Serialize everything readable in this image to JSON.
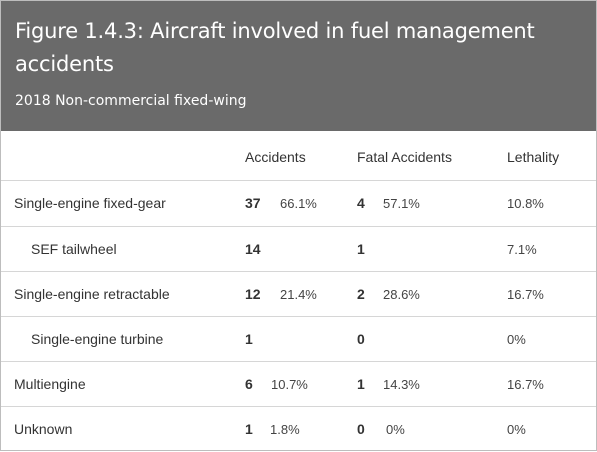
{
  "header": {
    "title": "Figure 1.4.3: Aircraft involved in fuel management accidents",
    "subtitle": "2018 Non-commercial fixed-wing"
  },
  "columns": {
    "accidents": "Accidents",
    "fatal": "Fatal Accidents",
    "lethality": "Lethality"
  },
  "rows": [
    {
      "label": "Single-engine fixed-gear",
      "acc": "37",
      "acc_pct": "66.1%",
      "fatal": "4",
      "fatal_pct": "57.1%",
      "lethality": "10.8%"
    },
    {
      "label": "SEF tailwheel",
      "acc": "14",
      "acc_pct": "",
      "fatal": "1",
      "fatal_pct": "",
      "lethality": "7.1%"
    },
    {
      "label": "Single-engine retractable",
      "acc": "12",
      "acc_pct": "21.4%",
      "fatal": "2",
      "fatal_pct": "28.6%",
      "lethality": "16.7%"
    },
    {
      "label": "Single-engine turbine",
      "acc": "1",
      "acc_pct": "",
      "fatal": "0",
      "fatal_pct": "",
      "lethality": "0%"
    },
    {
      "label": "Multiengine",
      "acc": "6",
      "acc_pct": "10.7%",
      "fatal": "1",
      "fatal_pct": "14.3%",
      "lethality": "16.7%"
    },
    {
      "label": "Unknown",
      "acc": "1",
      "acc_pct": "1.8%",
      "fatal": "0",
      "fatal_pct": "0%",
      "lethality": "0%"
    }
  ]
}
